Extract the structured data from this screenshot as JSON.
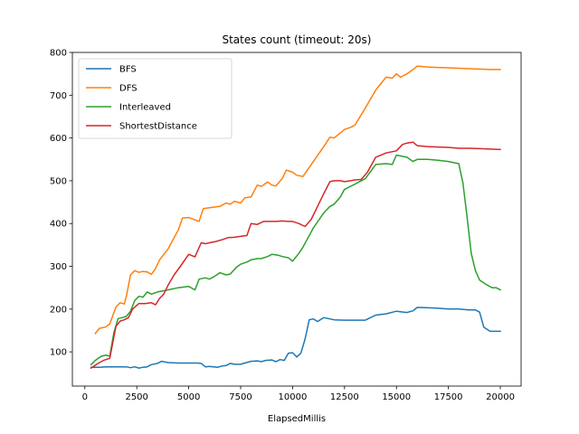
{
  "chart_data": {
    "type": "line",
    "title": "States count (timeout: 20s)",
    "xlabel": "ElapsedMillis",
    "ylabel": "",
    "xlim": [
      -600,
      21000
    ],
    "ylim": [
      20,
      800
    ],
    "xticks": [
      0,
      2500,
      5000,
      7500,
      10000,
      12500,
      15000,
      17500,
      20000
    ],
    "yticks": [
      100,
      200,
      300,
      400,
      500,
      600,
      700,
      800
    ],
    "xtick_labels": [
      "0",
      "2500",
      "5000",
      "7500",
      "10000",
      "12500",
      "15000",
      "17500",
      "20000"
    ],
    "ytick_labels": [
      "100",
      "200",
      "300",
      "400",
      "500",
      "600",
      "700",
      "800"
    ],
    "grid": false,
    "legend_position": "top-left",
    "series": [
      {
        "name": "BFS",
        "color": "#1f77b4",
        "x": [
          300,
          700,
          1000,
          1500,
          2000,
          2200,
          2400,
          2600,
          2800,
          3000,
          3200,
          3500,
          3700,
          4000,
          4500,
          5000,
          5400,
          5600,
          5800,
          6000,
          6200,
          6400,
          6600,
          6800,
          7000,
          7200,
          7500,
          7700,
          8000,
          8300,
          8500,
          8700,
          9000,
          9200,
          9400,
          9600,
          9800,
          10000,
          10200,
          10400,
          10600,
          10800,
          11000,
          11200,
          11500,
          12000,
          12500,
          13000,
          13500,
          14000,
          14500,
          15000,
          15500,
          15800,
          16000,
          16500,
          17000,
          17500,
          18000,
          18500,
          18800,
          19000,
          19200,
          19500,
          20000
        ],
        "y": [
          64,
          64,
          65,
          65,
          65,
          63,
          65,
          62,
          64,
          65,
          70,
          73,
          78,
          75,
          74,
          74,
          74,
          73,
          65,
          66,
          65,
          64,
          67,
          68,
          73,
          71,
          71,
          74,
          78,
          79,
          77,
          80,
          81,
          77,
          82,
          80,
          97,
          98,
          88,
          97,
          130,
          175,
          177,
          171,
          180,
          175,
          174,
          174,
          174,
          186,
          189,
          195,
          192,
          196,
          204,
          203,
          202,
          200,
          200,
          198,
          198,
          193,
          158,
          148,
          148
        ]
      },
      {
        "name": "DFS",
        "color": "#ff7f0e",
        "x": [
          500,
          700,
          1000,
          1200,
          1500,
          1700,
          1900,
          2000,
          2200,
          2400,
          2600,
          2800,
          3000,
          3200,
          3400,
          3600,
          4000,
          4500,
          4700,
          5000,
          5500,
          5700,
          6000,
          6500,
          6800,
          7000,
          7200,
          7500,
          7700,
          8000,
          8300,
          8500,
          8800,
          9000,
          9200,
          9500,
          9700,
          10000,
          10200,
          10500,
          11000,
          11500,
          11800,
          12000,
          12500,
          12800,
          13000,
          13500,
          14000,
          14500,
          14800,
          15000,
          15200,
          15500,
          15800,
          16000,
          16500,
          17000,
          17500,
          18000,
          18500,
          19000,
          19500,
          20000
        ],
        "y": [
          143,
          155,
          158,
          165,
          205,
          215,
          212,
          230,
          280,
          290,
          286,
          288,
          287,
          281,
          295,
          315,
          340,
          385,
          413,
          414,
          405,
          435,
          437,
          440,
          448,
          445,
          452,
          448,
          460,
          462,
          490,
          487,
          497,
          490,
          488,
          505,
          525,
          520,
          513,
          510,
          545,
          580,
          602,
          600,
          620,
          625,
          630,
          670,
          712,
          742,
          740,
          750,
          742,
          750,
          760,
          768,
          766,
          765,
          764,
          763,
          762,
          761,
          760,
          760
        ]
      },
      {
        "name": "Interleaved",
        "color": "#2ca02c",
        "x": [
          300,
          500,
          800,
          1000,
          1200,
          1400,
          1600,
          1800,
          2000,
          2200,
          2400,
          2600,
          2800,
          3000,
          3200,
          3500,
          4000,
          4500,
          5000,
          5300,
          5500,
          5800,
          6000,
          6300,
          6500,
          6800,
          7000,
          7300,
          7500,
          7800,
          8000,
          8300,
          8500,
          8800,
          9000,
          9300,
          9500,
          9800,
          10000,
          10300,
          10500,
          11000,
          11500,
          11800,
          12000,
          12300,
          12500,
          13000,
          13500,
          14000,
          14500,
          14800,
          15000,
          15300,
          15500,
          15800,
          16000,
          16500,
          17000,
          17500,
          18000,
          18200,
          18400,
          18600,
          18800,
          19000,
          19300,
          19600,
          19800,
          20000
        ],
        "y": [
          70,
          80,
          90,
          92,
          90,
          145,
          178,
          180,
          183,
          195,
          220,
          230,
          228,
          240,
          235,
          240,
          245,
          250,
          253,
          245,
          270,
          273,
          270,
          278,
          285,
          280,
          282,
          298,
          305,
          310,
          315,
          318,
          318,
          323,
          328,
          326,
          323,
          320,
          312,
          330,
          345,
          390,
          425,
          440,
          445,
          462,
          480,
          492,
          505,
          538,
          540,
          538,
          560,
          557,
          555,
          545,
          550,
          550,
          548,
          545,
          540,
          495,
          415,
          330,
          290,
          268,
          258,
          250,
          250,
          245
        ]
      },
      {
        "name": "ShortestDistance",
        "color": "#d62728",
        "x": [
          300,
          600,
          900,
          1200,
          1500,
          1700,
          1900,
          2100,
          2300,
          2600,
          2900,
          3200,
          3400,
          3600,
          3800,
          4000,
          4300,
          4600,
          5000,
          5300,
          5600,
          5800,
          6000,
          6300,
          6600,
          6900,
          7200,
          7500,
          7800,
          8000,
          8300,
          8600,
          8900,
          9200,
          9500,
          9800,
          10000,
          10300,
          10600,
          10900,
          11200,
          11500,
          11800,
          12000,
          12300,
          12500,
          12800,
          13000,
          13300,
          13600,
          14000,
          14500,
          15000,
          15300,
          15500,
          15800,
          16000,
          16500,
          17000,
          17500,
          18000,
          18500,
          19000,
          19500,
          20000
        ],
        "y": [
          62,
          72,
          80,
          85,
          160,
          172,
          175,
          180,
          200,
          213,
          213,
          215,
          210,
          225,
          235,
          255,
          280,
          300,
          328,
          322,
          355,
          353,
          355,
          358,
          362,
          367,
          368,
          370,
          372,
          400,
          398,
          405,
          405,
          405,
          406,
          405,
          405,
          400,
          393,
          410,
          440,
          470,
          498,
          500,
          500,
          498,
          500,
          502,
          503,
          520,
          555,
          565,
          570,
          585,
          588,
          590,
          582,
          580,
          579,
          578,
          576,
          576,
          575,
          574,
          573
        ]
      }
    ]
  }
}
